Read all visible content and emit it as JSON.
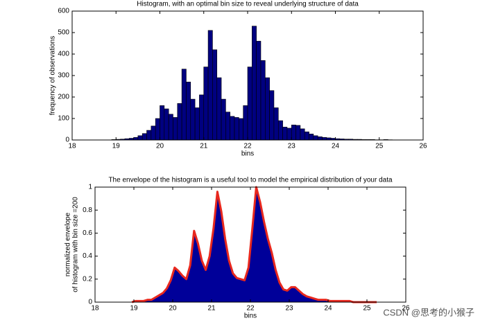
{
  "chart_data": [
    {
      "type": "histogram",
      "title": "Histogram, with an optimal bin size to reveal underlying structure of data",
      "xlabel": "bins",
      "ylabel": "frequency of observations",
      "bins": [
        18.9,
        19.0,
        19.1,
        19.2,
        19.3,
        19.4,
        19.5,
        19.6,
        19.7,
        19.8,
        19.9,
        20.0,
        20.1,
        20.2,
        20.3,
        20.4,
        20.5,
        20.6,
        20.7,
        20.8,
        20.9,
        21.0,
        21.1,
        21.2,
        21.3,
        21.4,
        21.5,
        21.6,
        21.7,
        21.8,
        21.9,
        22.0,
        22.1,
        22.2,
        22.3,
        22.4,
        22.5,
        22.6,
        22.7,
        22.8,
        22.9,
        23.0,
        23.1,
        23.2,
        23.3,
        23.4,
        23.5,
        23.6,
        23.7,
        23.8,
        23.9,
        24.0,
        24.1,
        24.2,
        24.3,
        24.4,
        24.5,
        24.6,
        24.7,
        24.8,
        24.9,
        25.0,
        25.1,
        25.2,
        25.3
      ],
      "counts": [
        2,
        3,
        4,
        6,
        8,
        12,
        20,
        30,
        45,
        65,
        100,
        160,
        145,
        120,
        105,
        170,
        330,
        270,
        190,
        150,
        210,
        340,
        510,
        420,
        290,
        190,
        130,
        110,
        105,
        100,
        160,
        340,
        530,
        460,
        370,
        290,
        230,
        150,
        90,
        60,
        55,
        70,
        68,
        52,
        38,
        28,
        20,
        15,
        12,
        10,
        8,
        6,
        5,
        4,
        4,
        3,
        3,
        2,
        2,
        2,
        1,
        1,
        2,
        1
      ],
      "color": "#000080",
      "edge_color": "#000000",
      "xlim": [
        18,
        26
      ],
      "xticks": [
        18,
        19,
        20,
        21,
        22,
        23,
        24,
        25,
        26
      ],
      "ylim": [
        0,
        600
      ],
      "yticks": [
        0,
        100,
        200,
        300,
        400,
        500,
        600
      ]
    },
    {
      "type": "area",
      "title": "The envelope of the histogram is a useful tool to model the empirical distribution of your data",
      "xlabel": "bins",
      "ylabel": [
        "normalized envelope",
        "of histogram with bin size =200"
      ],
      "x": [
        18.95,
        19.05,
        19.15,
        19.25,
        19.35,
        19.45,
        19.55,
        19.65,
        19.75,
        19.85,
        19.95,
        20.05,
        20.15,
        20.25,
        20.35,
        20.45,
        20.55,
        20.65,
        20.75,
        20.85,
        20.95,
        21.05,
        21.15,
        21.25,
        21.35,
        21.45,
        21.55,
        21.65,
        21.75,
        21.85,
        21.95,
        22.05,
        22.15,
        22.25,
        22.35,
        22.45,
        22.55,
        22.65,
        22.75,
        22.85,
        22.95,
        23.05,
        23.15,
        23.25,
        23.35,
        23.45,
        23.55,
        23.65,
        23.75,
        23.85,
        23.95,
        24.05,
        24.15,
        24.25,
        24.35,
        24.45,
        24.55,
        24.65,
        24.75,
        24.85,
        24.95,
        25.05,
        25.15,
        25.25
      ],
      "values": [
        0,
        0.01,
        0.01,
        0.01,
        0.02,
        0.02,
        0.04,
        0.06,
        0.08,
        0.12,
        0.19,
        0.3,
        0.27,
        0.23,
        0.2,
        0.32,
        0.62,
        0.51,
        0.36,
        0.28,
        0.4,
        0.64,
        0.96,
        0.79,
        0.55,
        0.36,
        0.25,
        0.21,
        0.2,
        0.19,
        0.3,
        0.64,
        1.0,
        0.87,
        0.7,
        0.55,
        0.43,
        0.28,
        0.17,
        0.11,
        0.1,
        0.13,
        0.13,
        0.1,
        0.07,
        0.05,
        0.04,
        0.03,
        0.02,
        0.02,
        0.02,
        0.01,
        0.01,
        0.01,
        0.01,
        0.01,
        0.01,
        0,
        0,
        0,
        0,
        0,
        0,
        0
      ],
      "color": "#000099",
      "line_color": "#e8281e",
      "xlim": [
        18,
        26
      ],
      "xticks": [
        18,
        19,
        20,
        21,
        22,
        23,
        24,
        25,
        26
      ],
      "ylim": [
        0,
        1
      ],
      "yticks": [
        0,
        0.2,
        0.4,
        0.6,
        0.8,
        1
      ]
    }
  ],
  "watermark": "CSDN @思考的小猴子"
}
